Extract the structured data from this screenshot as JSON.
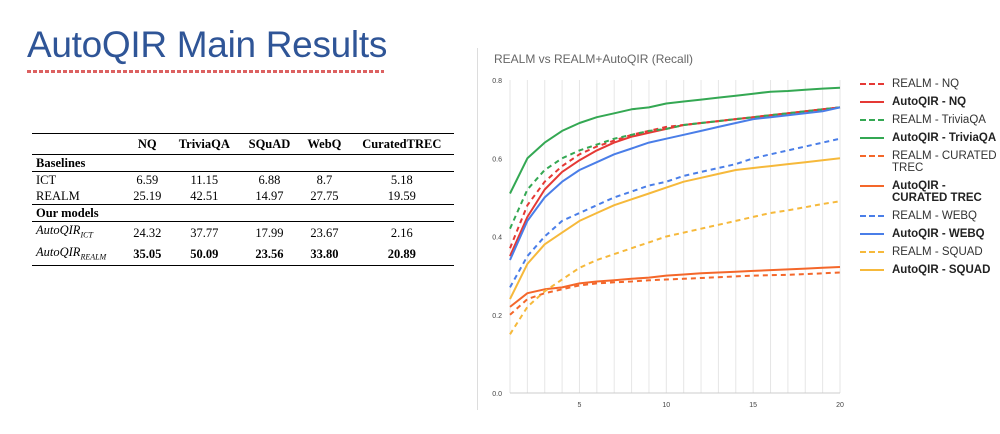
{
  "slide": {
    "title": "AutoQIR Main Results"
  },
  "table": {
    "headers": [
      "",
      "NQ",
      "TriviaQA",
      "SQuAD",
      "WebQ",
      "CuratedTREC"
    ],
    "groups": [
      {
        "label": "Baselines",
        "rows": [
          {
            "model": "ICT",
            "values": [
              "6.59",
              "11.15",
              "6.88",
              "8.7",
              "5.18"
            ],
            "bold": false
          },
          {
            "model": "REALM",
            "values": [
              "25.19",
              "42.51",
              "14.97",
              "27.75",
              "19.59"
            ],
            "bold": false
          }
        ]
      },
      {
        "label": "Our models",
        "rows": [
          {
            "model": "AutoQIR",
            "sub": "ICT",
            "values": [
              "24.32",
              "37.77",
              "17.99",
              "23.67",
              "2.16"
            ],
            "bold": false
          },
          {
            "model": "AutoQIR",
            "sub": "REALM",
            "values": [
              "35.05",
              "50.09",
              "23.56",
              "33.80",
              "20.89"
            ],
            "bold": true
          }
        ]
      }
    ]
  },
  "chart_data": {
    "type": "line",
    "title": "REALM vs REALM+AutoQIR (Recall)",
    "xlabel": "",
    "ylabel": "",
    "xlim": [
      1,
      20
    ],
    "ylim": [
      0,
      0.8
    ],
    "x_ticks": [
      "5",
      "10",
      "15",
      "20"
    ],
    "y_ticks": [
      "0.0",
      "0.2",
      "0.4",
      "0.6",
      "0.8"
    ],
    "grid": "vertical",
    "legend_position": "right",
    "x": [
      1,
      2,
      3,
      4,
      5,
      6,
      7,
      8,
      9,
      10,
      11,
      12,
      13,
      14,
      15,
      16,
      17,
      18,
      19,
      20
    ],
    "series": [
      {
        "name": "REALM - NQ",
        "color": "#e53935",
        "dashed": true,
        "bold": false,
        "values": [
          0.37,
          0.48,
          0.54,
          0.58,
          0.61,
          0.63,
          0.645,
          0.66,
          0.67,
          0.68,
          0.685,
          0.69,
          0.695,
          0.7,
          0.705,
          0.71,
          0.715,
          0.72,
          0.725,
          0.73
        ]
      },
      {
        "name": "AutoQIR - NQ",
        "color": "#e53935",
        "dashed": false,
        "bold": true,
        "values": [
          0.35,
          0.45,
          0.52,
          0.565,
          0.595,
          0.62,
          0.64,
          0.655,
          0.665,
          0.675,
          0.685,
          0.69,
          0.695,
          0.7,
          0.705,
          0.71,
          0.715,
          0.72,
          0.725,
          0.73
        ]
      },
      {
        "name": "REALM - TriviaQA",
        "color": "#34a853",
        "dashed": true,
        "bold": false,
        "values": [
          0.42,
          0.52,
          0.57,
          0.6,
          0.62,
          0.635,
          0.65,
          0.66,
          0.67,
          0.675,
          0.685,
          0.69,
          0.695,
          0.7,
          0.705,
          0.71,
          0.715,
          0.72,
          0.725,
          0.73
        ]
      },
      {
        "name": "AutoQIR - TriviaQA",
        "color": "#34a853",
        "dashed": false,
        "bold": true,
        "values": [
          0.51,
          0.6,
          0.64,
          0.67,
          0.69,
          0.705,
          0.715,
          0.725,
          0.73,
          0.74,
          0.745,
          0.75,
          0.755,
          0.76,
          0.765,
          0.77,
          0.772,
          0.775,
          0.778,
          0.78
        ]
      },
      {
        "name": "REALM - CURATED TREC",
        "color": "#f4672a",
        "dashed": true,
        "bold": false,
        "values": [
          0.2,
          0.24,
          0.255,
          0.265,
          0.275,
          0.28,
          0.283,
          0.285,
          0.288,
          0.29,
          0.292,
          0.294,
          0.296,
          0.298,
          0.3,
          0.301,
          0.302,
          0.304,
          0.306,
          0.308
        ]
      },
      {
        "name": "AutoQIR - CURATED TREC",
        "color": "#f4672a",
        "dashed": false,
        "bold": true,
        "values": [
          0.22,
          0.255,
          0.265,
          0.27,
          0.28,
          0.285,
          0.288,
          0.292,
          0.295,
          0.3,
          0.303,
          0.306,
          0.308,
          0.31,
          0.312,
          0.314,
          0.316,
          0.318,
          0.32,
          0.322
        ]
      },
      {
        "name": "REALM - WEBQ",
        "color": "#4a7ee8",
        "dashed": true,
        "bold": false,
        "values": [
          0.27,
          0.35,
          0.4,
          0.44,
          0.46,
          0.48,
          0.5,
          0.515,
          0.53,
          0.54,
          0.555,
          0.565,
          0.575,
          0.585,
          0.6,
          0.61,
          0.62,
          0.63,
          0.64,
          0.65
        ]
      },
      {
        "name": "AutoQIR - WEBQ",
        "color": "#4a7ee8",
        "dashed": false,
        "bold": true,
        "values": [
          0.34,
          0.44,
          0.5,
          0.54,
          0.57,
          0.59,
          0.61,
          0.625,
          0.64,
          0.65,
          0.66,
          0.67,
          0.68,
          0.69,
          0.7,
          0.705,
          0.71,
          0.715,
          0.72,
          0.73
        ]
      },
      {
        "name": "REALM - SQUAD",
        "color": "#f6b93b",
        "dashed": true,
        "bold": false,
        "values": [
          0.15,
          0.22,
          0.26,
          0.29,
          0.32,
          0.34,
          0.355,
          0.37,
          0.385,
          0.4,
          0.41,
          0.42,
          0.43,
          0.44,
          0.45,
          0.46,
          0.467,
          0.475,
          0.483,
          0.49
        ]
      },
      {
        "name": "AutoQIR - SQUAD",
        "color": "#f6b93b",
        "dashed": false,
        "bold": true,
        "values": [
          0.24,
          0.33,
          0.38,
          0.41,
          0.44,
          0.46,
          0.48,
          0.495,
          0.51,
          0.525,
          0.54,
          0.55,
          0.56,
          0.57,
          0.575,
          0.58,
          0.585,
          0.59,
          0.595,
          0.6
        ]
      }
    ]
  }
}
